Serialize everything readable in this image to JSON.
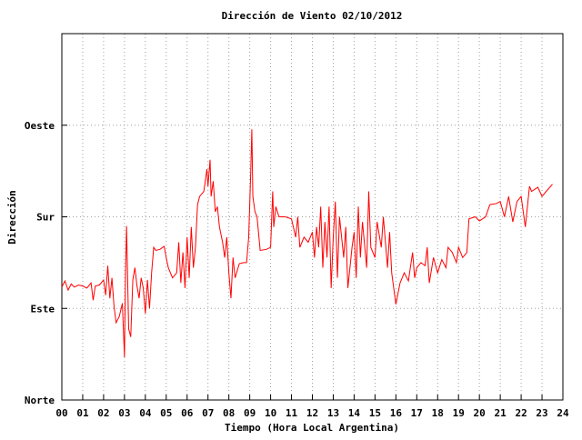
{
  "chart_data": {
    "type": "line",
    "title": "Dirección de Viento 02/10/2012",
    "xlabel": "Tiempo (Hora Local Argentina)",
    "ylabel": "Dirección",
    "xlim": [
      0,
      24
    ],
    "xticks": [
      {
        "value": 0,
        "label": "00"
      },
      {
        "value": 1,
        "label": "01"
      },
      {
        "value": 2,
        "label": "02"
      },
      {
        "value": 3,
        "label": "03"
      },
      {
        "value": 4,
        "label": "04"
      },
      {
        "value": 5,
        "label": "05"
      },
      {
        "value": 6,
        "label": "06"
      },
      {
        "value": 7,
        "label": "07"
      },
      {
        "value": 8,
        "label": "08"
      },
      {
        "value": 9,
        "label": "09"
      },
      10,
      11,
      12,
      13,
      14,
      15,
      16,
      17,
      18,
      19,
      20,
      21,
      22,
      23,
      24
    ],
    "ylim": [
      0,
      360
    ],
    "yticks": [
      {
        "value": 0,
        "label": "Norte"
      },
      {
        "value": 90,
        "label": "Este"
      },
      {
        "value": 180,
        "label": "Sur"
      },
      {
        "value": 270,
        "label": "Oeste"
      }
    ],
    "grid": true,
    "series": [
      {
        "color": "#ff0000",
        "x": [
          0.0,
          0.15,
          0.3,
          0.45,
          0.6,
          0.8,
          1.0,
          1.2,
          1.4,
          1.5,
          1.6,
          1.8,
          2.0,
          2.1,
          2.2,
          2.3,
          2.4,
          2.5,
          2.6,
          2.75,
          2.9,
          3.0,
          3.05,
          3.1,
          3.2,
          3.3,
          3.4,
          3.5,
          3.6,
          3.7,
          3.8,
          3.9,
          4.0,
          4.1,
          4.2,
          4.3,
          4.4,
          4.5,
          4.7,
          4.9,
          5.0,
          5.1,
          5.3,
          5.5,
          5.6,
          5.7,
          5.8,
          5.9,
          6.0,
          6.1,
          6.2,
          6.3,
          6.4,
          6.5,
          6.6,
          6.8,
          6.95,
          7.0,
          7.1,
          7.15,
          7.25,
          7.35,
          7.45,
          7.55,
          7.7,
          7.8,
          7.9,
          8.0,
          8.1,
          8.2,
          8.3,
          8.5,
          8.7,
          8.85,
          8.95,
          9.05,
          9.1,
          9.15,
          9.25,
          9.35,
          9.5,
          9.8,
          10.0,
          10.1,
          10.15,
          10.25,
          10.4,
          10.7,
          11.0,
          11.2,
          11.3,
          11.4,
          11.6,
          11.8,
          12.0,
          12.1,
          12.2,
          12.3,
          12.4,
          12.5,
          12.6,
          12.7,
          12.8,
          12.9,
          13.0,
          13.1,
          13.2,
          13.3,
          13.5,
          13.6,
          13.7,
          13.9,
          14.0,
          14.1,
          14.2,
          14.3,
          14.4,
          14.6,
          14.7,
          14.8,
          15.0,
          15.1,
          15.3,
          15.4,
          15.6,
          15.7,
          15.8,
          16.0,
          16.2,
          16.4,
          16.6,
          16.8,
          16.9,
          17.0,
          17.2,
          17.4,
          17.5,
          17.6,
          17.8,
          18.0,
          18.2,
          18.4,
          18.5,
          18.7,
          18.9,
          19.0,
          19.2,
          19.4,
          19.5,
          19.8,
          20.0,
          20.3,
          20.5,
          20.8,
          21.0,
          21.2,
          21.4,
          21.6,
          21.8,
          22.0,
          22.2,
          22.4,
          22.5,
          22.8,
          23.0,
          23.2,
          23.5
        ],
        "values": [
          111,
          117,
          108,
          114,
          111,
          113,
          112,
          110,
          115,
          98,
          112,
          113,
          118,
          103,
          132,
          100,
          120,
          92,
          76,
          82,
          95,
          42,
          125,
          171,
          70,
          62,
          118,
          130,
          112,
          100,
          120,
          110,
          85,
          118,
          90,
          125,
          150,
          147,
          148,
          151,
          140,
          130,
          120,
          125,
          155,
          115,
          145,
          110,
          160,
          120,
          170,
          130,
          150,
          192,
          200,
          205,
          227,
          210,
          236,
          200,
          215,
          185,
          190,
          170,
          155,
          140,
          160,
          125,
          100,
          140,
          120,
          134,
          135,
          135,
          160,
          225,
          266,
          200,
          185,
          180,
          147,
          148,
          150,
          205,
          170,
          190,
          180,
          180,
          178,
          160,
          180,
          150,
          160,
          155,
          165,
          140,
          170,
          150,
          190,
          130,
          175,
          140,
          190,
          110,
          160,
          195,
          120,
          180,
          140,
          170,
          110,
          150,
          165,
          120,
          190,
          140,
          175,
          130,
          205,
          150,
          140,
          175,
          150,
          180,
          130,
          165,
          125,
          94,
          115,
          125,
          117,
          145,
          120,
          130,
          135,
          132,
          150,
          115,
          140,
          125,
          138,
          130,
          150,
          145,
          135,
          150,
          140,
          145,
          178,
          180,
          176,
          180,
          192,
          193,
          195,
          180,
          200,
          175,
          195,
          200,
          170,
          210,
          205,
          209,
          200,
          205,
          212
        ]
      }
    ]
  }
}
